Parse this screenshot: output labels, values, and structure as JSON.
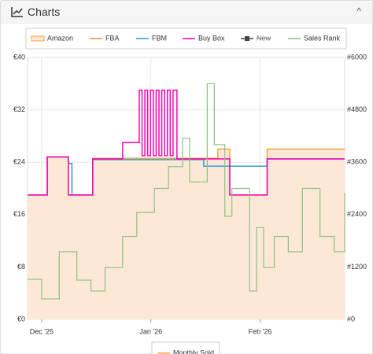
{
  "header": {
    "title": "Charts"
  },
  "chart_data": {
    "type": "line",
    "xlim": [
      0,
      90
    ],
    "xticks": [
      {
        "value": 4,
        "label": "Dec '25"
      },
      {
        "value": 35,
        "label": "Jan '26"
      },
      {
        "value": 66,
        "label": "Feb '26"
      }
    ],
    "ylim": [
      0,
      40
    ],
    "yticks": [
      {
        "value": 0,
        "label": "€0"
      },
      {
        "value": 8,
        "label": "€8"
      },
      {
        "value": 16,
        "label": "€16"
      },
      {
        "value": 24,
        "label": "€24"
      },
      {
        "value": 32,
        "label": "€32"
      },
      {
        "value": 40,
        "label": "€40"
      }
    ],
    "y2lim": [
      0,
      6000
    ],
    "y2ticks": [
      {
        "value": 0,
        "label": "#0"
      },
      {
        "value": 1200,
        "label": "#1200"
      },
      {
        "value": 2400,
        "label": "#2400"
      },
      {
        "value": 3600,
        "label": "#3600"
      },
      {
        "value": 4800,
        "label": "#4800"
      },
      {
        "value": 6000,
        "label": "#6000"
      }
    ],
    "grid": true,
    "series": [
      {
        "name": "Amazon",
        "color": "#f5a340",
        "fill": "#fde8d6",
        "x": [
          0,
          5.6,
          5.6,
          11.6,
          11.6,
          18.5,
          18.5,
          54,
          54,
          57.4,
          57.4,
          68,
          68,
          90
        ],
        "values": [
          19,
          19,
          24.8,
          24.8,
          19,
          19,
          24.6,
          24.6,
          26,
          26,
          19,
          19,
          26,
          26
        ]
      },
      {
        "name": "FBA",
        "color": "#ff7f50",
        "x": [],
        "values": []
      },
      {
        "name": "FBM",
        "color": "#2a9fd6",
        "x": [
          0,
          5.6,
          5.6,
          11.6,
          11.6,
          12.6,
          12.6,
          18.5,
          18.5,
          50,
          50,
          68,
          68,
          90
        ],
        "values": [
          19,
          19,
          24.8,
          24.8,
          23.8,
          23.8,
          19,
          19,
          24.4,
          24.4,
          23.4,
          23.4,
          24.5,
          24.5
        ]
      },
      {
        "name": "Buy Box",
        "color": "#ff00b4",
        "x": [
          0,
          5.6,
          5.6,
          11.6,
          11.6,
          18.5,
          18.5,
          27,
          27,
          31.7,
          31.7,
          32.5,
          32.5,
          33.3,
          33.3,
          34.1,
          34.1,
          34.9,
          34.9,
          35.7,
          35.7,
          36.5,
          36.5,
          37.3,
          37.3,
          38.1,
          38.1,
          38.9,
          38.9,
          39.7,
          39.7,
          40.5,
          40.5,
          41.3,
          41.3,
          42.4,
          42.4,
          57.4,
          57.4,
          68,
          68,
          90
        ],
        "values": [
          19,
          19,
          24.8,
          24.8,
          19,
          19,
          24.5,
          24.5,
          27,
          27,
          35,
          35,
          25,
          25,
          35,
          35,
          25,
          25,
          35,
          35,
          25,
          25,
          35,
          35,
          25,
          25,
          35,
          35,
          25,
          25,
          35,
          35,
          25,
          25,
          35,
          35,
          24.5,
          24.5,
          19,
          19,
          24.5,
          24.5
        ]
      },
      {
        "name": "New",
        "color": "#444444",
        "hidden": true,
        "x": [],
        "values": []
      },
      {
        "name": "Sales Rank",
        "color": "#8cc084",
        "axis": "y2",
        "x": [
          0,
          4,
          9,
          14,
          18,
          22,
          27,
          31,
          36,
          40,
          44,
          46,
          51,
          53,
          56,
          58,
          63,
          65,
          67,
          70,
          74,
          78,
          83,
          87,
          90
        ],
        "values": [
          918,
          470,
          1550,
          900,
          650,
          1190,
          1900,
          2450,
          3000,
          3500,
          4150,
          3150,
          5400,
          4000,
          2360,
          3000,
          650,
          2100,
          1190,
          1900,
          1550,
          3000,
          1900,
          1550,
          2900
        ]
      }
    ],
    "extra_legend": {
      "name": "Monthly Sold",
      "color": "#f5a340"
    }
  }
}
